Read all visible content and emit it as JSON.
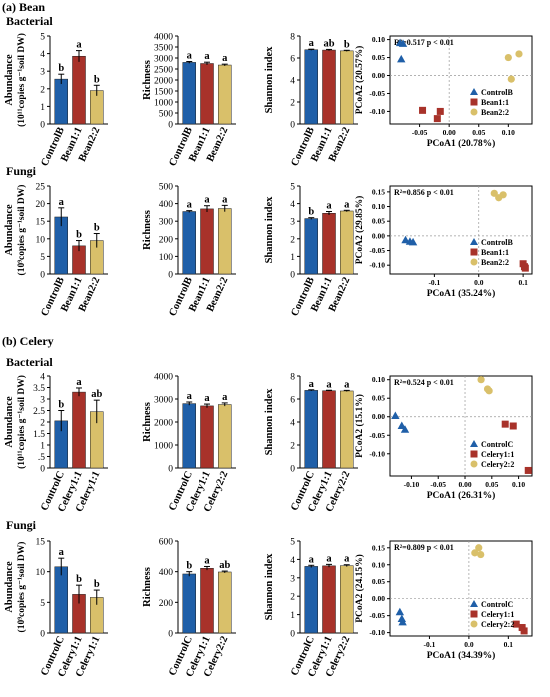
{
  "sections": [
    {
      "label": "(a)  Bean",
      "rows": [
        "Bacterial",
        "Fungi"
      ]
    },
    {
      "label": "(b)  Celery",
      "rows": [
        "Bacterial",
        "Fungi"
      ]
    }
  ],
  "colors": {
    "control": "#1f5fa8",
    "treat1": "#a8322a",
    "treat2": "#d9c06a"
  },
  "chart_data": [
    {
      "type": "bar",
      "panel": "bean-bacterial-abundance",
      "ylabel_main": "Abundance",
      "ylabel_unit": "(10¹¹copies g⁻¹soil DW)",
      "categories": [
        "ControlB",
        "Bean1:1",
        "Bean2:2"
      ],
      "values": [
        2.55,
        3.85,
        1.9
      ],
      "errors": [
        0.28,
        0.32,
        0.3
      ],
      "letters": [
        "b",
        "a",
        "b"
      ],
      "ylim": [
        0,
        5
      ],
      "ticks": [
        0,
        1,
        2,
        3,
        4,
        5
      ]
    },
    {
      "type": "bar",
      "panel": "bean-bacterial-richness",
      "ylabel_main": "Richness",
      "ylabel_unit": "",
      "categories": [
        "ControlB",
        "Bean1:1",
        "Bean2:2"
      ],
      "values": [
        2800,
        2750,
        2680
      ],
      "errors": [
        40,
        60,
        40
      ],
      "letters": [
        "a",
        "a",
        "a"
      ],
      "ylim": [
        0,
        4000
      ],
      "ticks": [
        0,
        500,
        1000,
        1500,
        2000,
        2500,
        3000,
        3500,
        4000
      ]
    },
    {
      "type": "bar",
      "panel": "bean-bacterial-shannon",
      "ylabel_main": "Shannon index",
      "ylabel_unit": "",
      "categories": [
        "ControlB",
        "Bean1:1",
        "Bean2:2"
      ],
      "values": [
        6.75,
        6.72,
        6.65
      ],
      "errors": [
        0.05,
        0.06,
        0.05
      ],
      "letters": [
        "a",
        "ab",
        "b"
      ],
      "ylim": [
        0,
        8
      ],
      "ticks": [
        0,
        2,
        4,
        6,
        8
      ]
    },
    {
      "type": "scatter",
      "panel": "bean-bacterial-pcoa",
      "annotation": "R²=0.517  p < 0.01",
      "xlabel": "PCoA1 (20.78%)",
      "ylabel": "PCoA2 (20.57%)",
      "xlim": [
        -0.1,
        0.14
      ],
      "ylim": [
        -0.135,
        0.11
      ],
      "xticks": [
        -0.05,
        0.0,
        0.05,
        0.1
      ],
      "xticklabels": [
        "-0.05",
        "0.00",
        "0.05",
        "0.10"
      ],
      "yticks": [
        -0.1,
        -0.05,
        0.0,
        0.05,
        0.1
      ],
      "yticklabels": [
        "-0.10",
        "-0.05",
        "0.00",
        "0.05",
        "0.10"
      ],
      "legend": [
        "ControlB",
        "Bean1:1",
        "Bean2:2"
      ],
      "series": [
        {
          "name": "ControlB",
          "marker": "triangle",
          "points": [
            [
              -0.083,
              0.09
            ],
            [
              -0.078,
              0.088
            ],
            [
              -0.081,
              0.045
            ]
          ]
        },
        {
          "name": "Bean1:1",
          "marker": "square",
          "points": [
            [
              -0.045,
              -0.097
            ],
            [
              -0.015,
              -0.1
            ],
            [
              -0.02,
              -0.12
            ]
          ]
        },
        {
          "name": "Bean2:2",
          "marker": "circle",
          "points": [
            [
              0.1,
              0.05
            ],
            [
              0.118,
              0.06
            ],
            [
              0.105,
              -0.01
            ]
          ]
        }
      ]
    },
    {
      "type": "bar",
      "panel": "bean-fungi-abundance",
      "ylabel_main": "Abundance",
      "ylabel_unit": "(10⁹copies g⁻¹soil DW)",
      "categories": [
        "ControlB",
        "Bean1:1",
        "Bean2:2"
      ],
      "values": [
        16.2,
        8.0,
        9.5
      ],
      "errors": [
        2.6,
        1.5,
        2.0
      ],
      "letters": [
        "a",
        "b",
        "b"
      ],
      "ylim": [
        0,
        25
      ],
      "ticks": [
        0,
        5,
        10,
        15,
        20,
        25
      ]
    },
    {
      "type": "bar",
      "panel": "bean-fungi-richness",
      "ylabel_main": "Richness",
      "ylabel_unit": "",
      "categories": [
        "ControlB",
        "Bean1:1",
        "Bean2:2"
      ],
      "values": [
        355,
        370,
        372
      ],
      "errors": [
        5,
        18,
        18
      ],
      "letters": [
        "a",
        "a",
        "a"
      ],
      "ylim": [
        0,
        500
      ],
      "ticks": [
        0,
        100,
        200,
        300,
        400,
        500
      ]
    },
    {
      "type": "bar",
      "panel": "bean-fungi-shannon",
      "ylabel_main": "Shannon index",
      "ylabel_unit": "",
      "categories": [
        "ControlB",
        "Bean1:1",
        "Bean2:2"
      ],
      "values": [
        3.15,
        3.45,
        3.58
      ],
      "errors": [
        0.05,
        0.1,
        0.04
      ],
      "letters": [
        "b",
        "a",
        "a"
      ],
      "ylim": [
        0,
        5
      ],
      "ticks": [
        0,
        1,
        2,
        3,
        4,
        5
      ]
    },
    {
      "type": "scatter",
      "panel": "bean-fungi-pcoa",
      "annotation": "R²=0.856  p < 0.01",
      "xlabel": "PCoA1 (35.24%)",
      "ylabel": "PCoA2 (29.85%)",
      "xlim": [
        -0.2,
        0.12
      ],
      "ylim": [
        -0.13,
        0.17
      ],
      "xticks": [
        -0.1,
        0.0,
        0.1
      ],
      "xticklabels": [
        "-0.1",
        "0.0",
        "0.1"
      ],
      "yticks": [
        -0.1,
        -0.05,
        0.0,
        0.05,
        0.1,
        0.15
      ],
      "yticklabels": [
        "-0.10",
        "-0.05",
        "0.00",
        "0.05",
        "0.10",
        "0.15"
      ],
      "legend": [
        "ControlB",
        "Bean1:1",
        "Bean2:2"
      ],
      "series": [
        {
          "name": "ControlB",
          "marker": "triangle",
          "points": [
            [
              -0.165,
              -0.015
            ],
            [
              -0.155,
              -0.02
            ],
            [
              -0.148,
              -0.022
            ]
          ]
        },
        {
          "name": "Bean1:1",
          "marker": "square",
          "points": [
            [
              0.1,
              -0.095
            ],
            [
              0.103,
              -0.105
            ],
            [
              0.105,
              -0.11
            ]
          ]
        },
        {
          "name": "Bean2:2",
          "marker": "circle",
          "points": [
            [
              0.035,
              0.145
            ],
            [
              0.045,
              0.13
            ],
            [
              0.055,
              0.14
            ]
          ]
        }
      ]
    },
    {
      "type": "bar",
      "panel": "celery-bacterial-abundance",
      "ylabel_main": "Abundance",
      "ylabel_unit": "(10¹¹copies g⁻¹soil DW)",
      "categories": [
        "ControlC",
        "Celery1:1",
        "Celery1:1"
      ],
      "values": [
        2.05,
        3.3,
        2.45
      ],
      "errors": [
        0.45,
        0.18,
        0.5
      ],
      "letters": [
        "b",
        "a",
        "ab"
      ],
      "ylim": [
        0,
        4
      ],
      "ticks": [
        0,
        0.5,
        1,
        1.5,
        2,
        2.5,
        3,
        3.5,
        4
      ],
      "ticklabels": [
        "0",
        ".5",
        "1",
        "1.5",
        "2",
        "2.5",
        "3",
        "3.5",
        "4"
      ]
    },
    {
      "type": "bar",
      "panel": "celery-bacterial-richness",
      "ylabel_main": "Richness",
      "ylabel_unit": "",
      "categories": [
        "ControlC",
        "Celery1:1",
        "Celery2:2"
      ],
      "values": [
        2800,
        2700,
        2760
      ],
      "errors": [
        70,
        80,
        70
      ],
      "letters": [
        "a",
        "a",
        "a"
      ],
      "ylim": [
        0,
        4000
      ],
      "ticks": [
        0,
        1000,
        2000,
        3000,
        4000
      ]
    },
    {
      "type": "bar",
      "panel": "celery-bacterial-shannon",
      "ylabel_main": "Shannon index",
      "ylabel_unit": "",
      "categories": [
        "ControlC",
        "Celery1:1",
        "Celery2:2"
      ],
      "values": [
        6.75,
        6.72,
        6.7
      ],
      "errors": [
        0.05,
        0.04,
        0.05
      ],
      "letters": [
        "a",
        "a",
        "a"
      ],
      "ylim": [
        0,
        8
      ],
      "ticks": [
        0,
        2,
        4,
        6,
        8
      ]
    },
    {
      "type": "scatter",
      "panel": "celery-bacterial-pcoa",
      "annotation": "R²=0.524  p < 0.01",
      "xlabel": "PCoA1 (26.31%)",
      "ylabel": "PCoA2 (15.1%)",
      "xlim": [
        -0.14,
        0.125
      ],
      "ylim": [
        -0.16,
        0.11
      ],
      "xticks": [
        -0.15,
        -0.1,
        -0.05,
        0.0,
        0.05,
        0.1
      ],
      "xticklabels": [
        "-0.15",
        "-0.10",
        "-0.05",
        "0.00",
        "0.05",
        "0.10"
      ],
      "yticks": [
        -0.1,
        -0.05,
        0.0,
        0.05,
        0.1
      ],
      "yticklabels": [
        "-0.10",
        "-0.05",
        "0.00",
        "0.05",
        "0.10"
      ],
      "legend": [
        "ControlC",
        "Celery1:1",
        "Celery2:2"
      ],
      "series": [
        {
          "name": "ControlC",
          "marker": "triangle",
          "points": [
            [
              -0.13,
              0.002
            ],
            [
              -0.118,
              -0.025
            ],
            [
              -0.112,
              -0.035
            ]
          ]
        },
        {
          "name": "Celery1:1",
          "marker": "square",
          "points": [
            [
              0.075,
              -0.02
            ],
            [
              0.09,
              -0.025
            ],
            [
              0.118,
              -0.145
            ]
          ]
        },
        {
          "name": "Celery2:2",
          "marker": "circle",
          "points": [
            [
              0.03,
              0.1
            ],
            [
              0.042,
              0.075
            ],
            [
              0.045,
              0.07
            ]
          ]
        }
      ]
    },
    {
      "type": "bar",
      "panel": "celery-fungi-abundance",
      "ylabel_main": "Abundance",
      "ylabel_unit": "(10⁹copies g⁻¹soil DW)",
      "categories": [
        "ControlC",
        "Celery1:1",
        "Celery1:1"
      ],
      "values": [
        10.8,
        6.3,
        5.8
      ],
      "errors": [
        1.4,
        1.5,
        1.2
      ],
      "letters": [
        "a",
        "b",
        "b"
      ],
      "ylim": [
        0,
        15
      ],
      "ticks": [
        0,
        5,
        10,
        15
      ]
    },
    {
      "type": "bar",
      "panel": "celery-fungi-richness",
      "ylabel_main": "Richness",
      "ylabel_unit": "",
      "categories": [
        "ControlC",
        "Celery1:1",
        "Celery2:2"
      ],
      "values": [
        385,
        422,
        398
      ],
      "errors": [
        15,
        12,
        6
      ],
      "letters": [
        "b",
        "a",
        "ab"
      ],
      "ylim": [
        0,
        600
      ],
      "ticks": [
        0,
        200,
        400,
        600
      ]
    },
    {
      "type": "bar",
      "panel": "celery-fungi-shannon",
      "ylabel_main": "Shannon index",
      "ylabel_unit": "",
      "categories": [
        "ControlC",
        "Celery1:1",
        "Celery2:2"
      ],
      "values": [
        3.62,
        3.65,
        3.66
      ],
      "errors": [
        0.06,
        0.08,
        0.05
      ],
      "letters": [
        "a",
        "a",
        "a"
      ],
      "ylim": [
        0,
        5
      ],
      "ticks": [
        0,
        1,
        2,
        3,
        4,
        5
      ]
    },
    {
      "type": "scatter",
      "panel": "celery-fungi-pcoa",
      "annotation": "R²=0.809  p < 0.01",
      "xlabel": "PCoA1 (34.39%)",
      "ylabel": "PCoA2 (24.15%)",
      "xlim": [
        -0.2,
        0.16
      ],
      "ylim": [
        -0.11,
        0.17
      ],
      "xticks": [
        -0.1,
        0.0,
        0.1
      ],
      "xticklabels": [
        "-0.1",
        "0.0",
        "0.1"
      ],
      "yticks": [
        -0.1,
        -0.05,
        0.0,
        0.05,
        0.1,
        0.15
      ],
      "yticklabels": [
        "-0.10",
        "-0.05",
        "0.00",
        "0.05",
        "0.10",
        "0.15"
      ],
      "legend": [
        "ControlC",
        "Celery1:1",
        "Celery2:2"
      ],
      "series": [
        {
          "name": "ControlC",
          "marker": "triangle",
          "points": [
            [
              -0.175,
              -0.04
            ],
            [
              -0.17,
              -0.06
            ],
            [
              -0.168,
              -0.07
            ]
          ]
        },
        {
          "name": "Celery1:1",
          "marker": "square",
          "points": [
            [
              0.12,
              -0.075
            ],
            [
              0.135,
              -0.085
            ],
            [
              0.14,
              -0.095
            ]
          ]
        },
        {
          "name": "Celery2:2",
          "marker": "circle",
          "points": [
            [
              0.015,
              0.135
            ],
            [
              0.025,
              0.15
            ],
            [
              0.03,
              0.13
            ]
          ]
        }
      ]
    }
  ]
}
